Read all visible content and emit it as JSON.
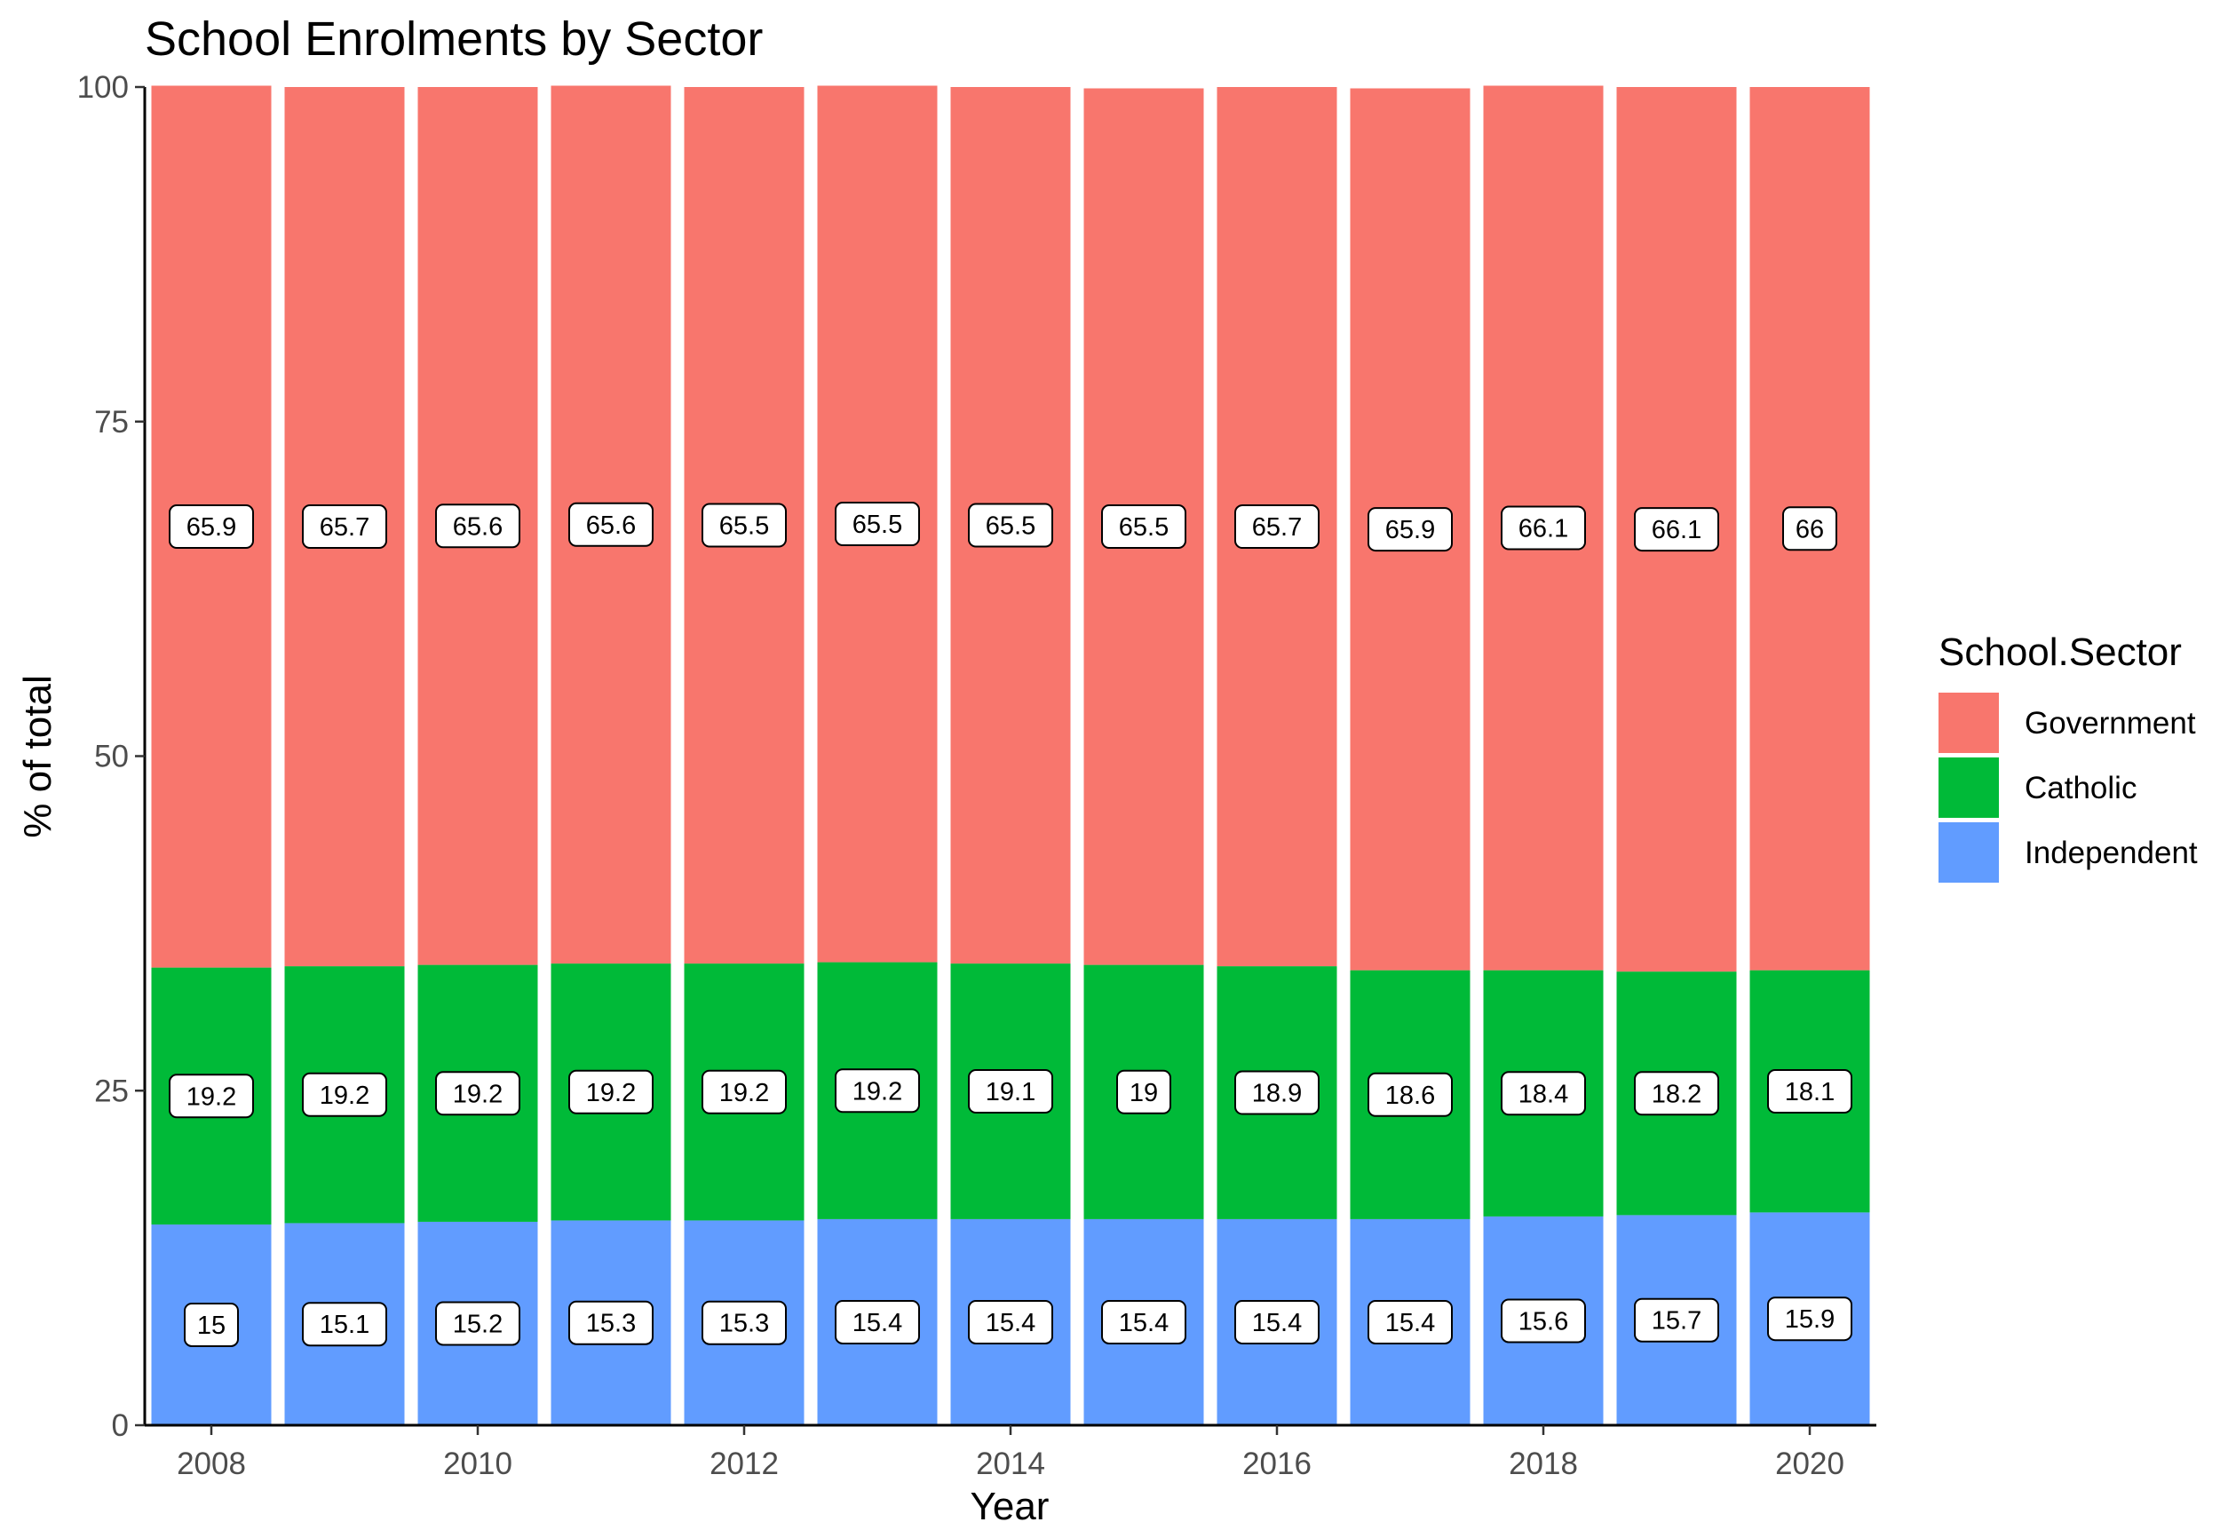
{
  "chart_data": {
    "type": "bar",
    "stacked": true,
    "title": "School Enrolments by Sector",
    "xlabel": "Year",
    "ylabel": "% of total",
    "ylim": [
      0,
      100
    ],
    "yticks": [
      0,
      25,
      50,
      75,
      100
    ],
    "xticks": [
      2008,
      2010,
      2012,
      2014,
      2016,
      2018,
      2020
    ],
    "categories": [
      2008,
      2009,
      2010,
      2011,
      2012,
      2013,
      2014,
      2015,
      2016,
      2017,
      2018,
      2019,
      2020
    ],
    "grid": false,
    "legend": {
      "title": "School.Sector",
      "placement": "right",
      "entries": [
        "Government",
        "Catholic",
        "Independent"
      ]
    },
    "series": [
      {
        "name": "Independent",
        "color": "#619CFF",
        "values": [
          15.0,
          15.1,
          15.2,
          15.3,
          15.3,
          15.4,
          15.4,
          15.4,
          15.4,
          15.4,
          15.6,
          15.7,
          15.9
        ],
        "labels": [
          "15",
          "15.1",
          "15.2",
          "15.3",
          "15.3",
          "15.4",
          "15.4",
          "15.4",
          "15.4",
          "15.4",
          "15.6",
          "15.7",
          "15.9"
        ]
      },
      {
        "name": "Catholic",
        "color": "#00BA38",
        "values": [
          19.2,
          19.2,
          19.2,
          19.2,
          19.2,
          19.2,
          19.1,
          19.0,
          18.9,
          18.6,
          18.4,
          18.2,
          18.1
        ],
        "labels": [
          "19.2",
          "19.2",
          "19.2",
          "19.2",
          "19.2",
          "19.2",
          "19.1",
          "19",
          "18.9",
          "18.6",
          "18.4",
          "18.2",
          "18.1"
        ]
      },
      {
        "name": "Government",
        "color": "#F8766D",
        "values": [
          65.9,
          65.7,
          65.6,
          65.6,
          65.5,
          65.5,
          65.5,
          65.5,
          65.7,
          65.9,
          66.1,
          66.1,
          66.0
        ],
        "labels": [
          "65.9",
          "65.7",
          "65.6",
          "65.6",
          "65.5",
          "65.5",
          "65.5",
          "65.5",
          "65.7",
          "65.9",
          "66.1",
          "66.1",
          "66"
        ]
      }
    ]
  }
}
